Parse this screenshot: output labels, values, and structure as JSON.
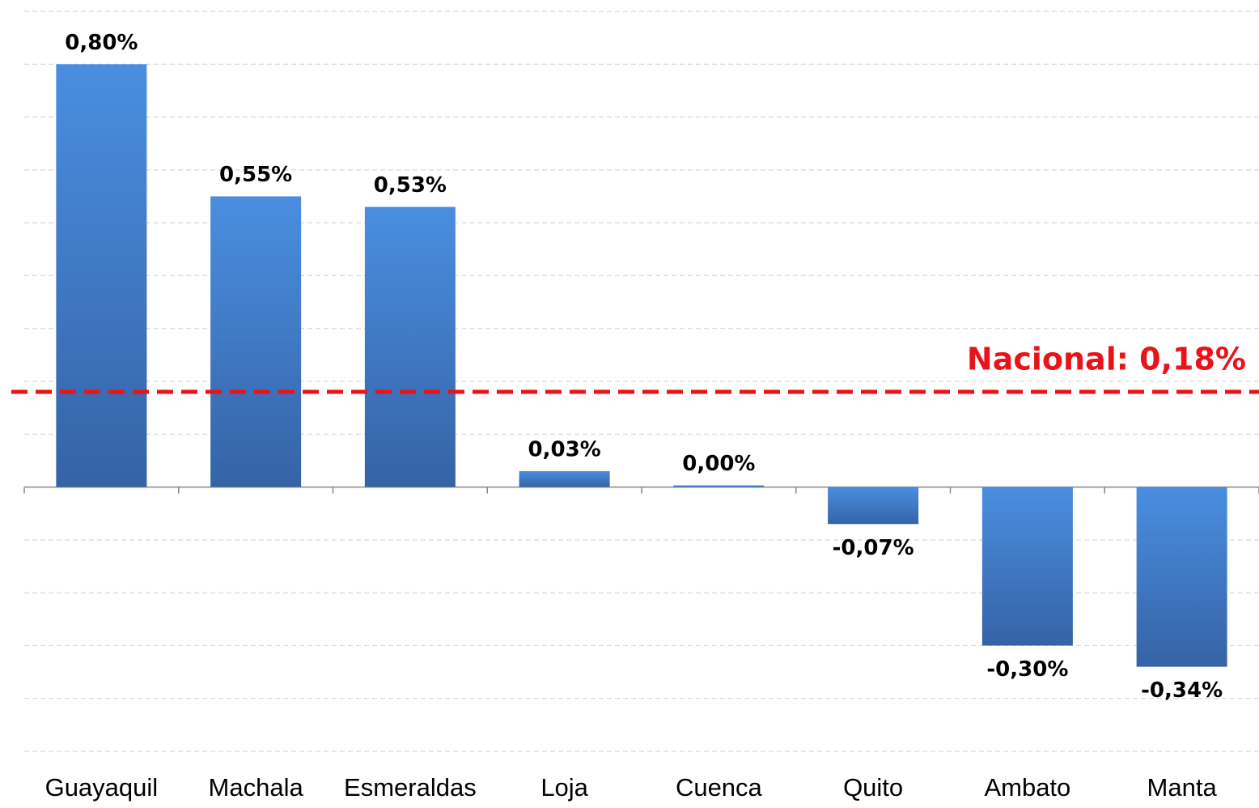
{
  "chart_data": {
    "type": "bar",
    "categories": [
      "Guayaquil",
      "Machala",
      "Esmeraldas",
      "Loja",
      "Cuenca",
      "Quito",
      "Ambato",
      "Manta"
    ],
    "values": [
      0.8,
      0.55,
      0.53,
      0.03,
      0.0,
      -0.07,
      -0.3,
      -0.34
    ],
    "value_labels": [
      "0,80%",
      "0,55%",
      "0,53%",
      "0,03%",
      "0,00%",
      "-0,07%",
      "-0,30%",
      "-0,34%"
    ],
    "color": "#3f7ccc",
    "ylim": [
      -0.5,
      0.9
    ],
    "gridlines": [
      -0.5,
      -0.4,
      -0.3,
      -0.2,
      -0.1,
      0.1,
      0.2,
      0.3,
      0.4,
      0.5,
      0.6,
      0.7,
      0.8,
      0.9
    ],
    "grid": true,
    "reference_line": {
      "label": "Nacional: 0,18%",
      "value": 0.18,
      "color": "#e8141a"
    }
  }
}
